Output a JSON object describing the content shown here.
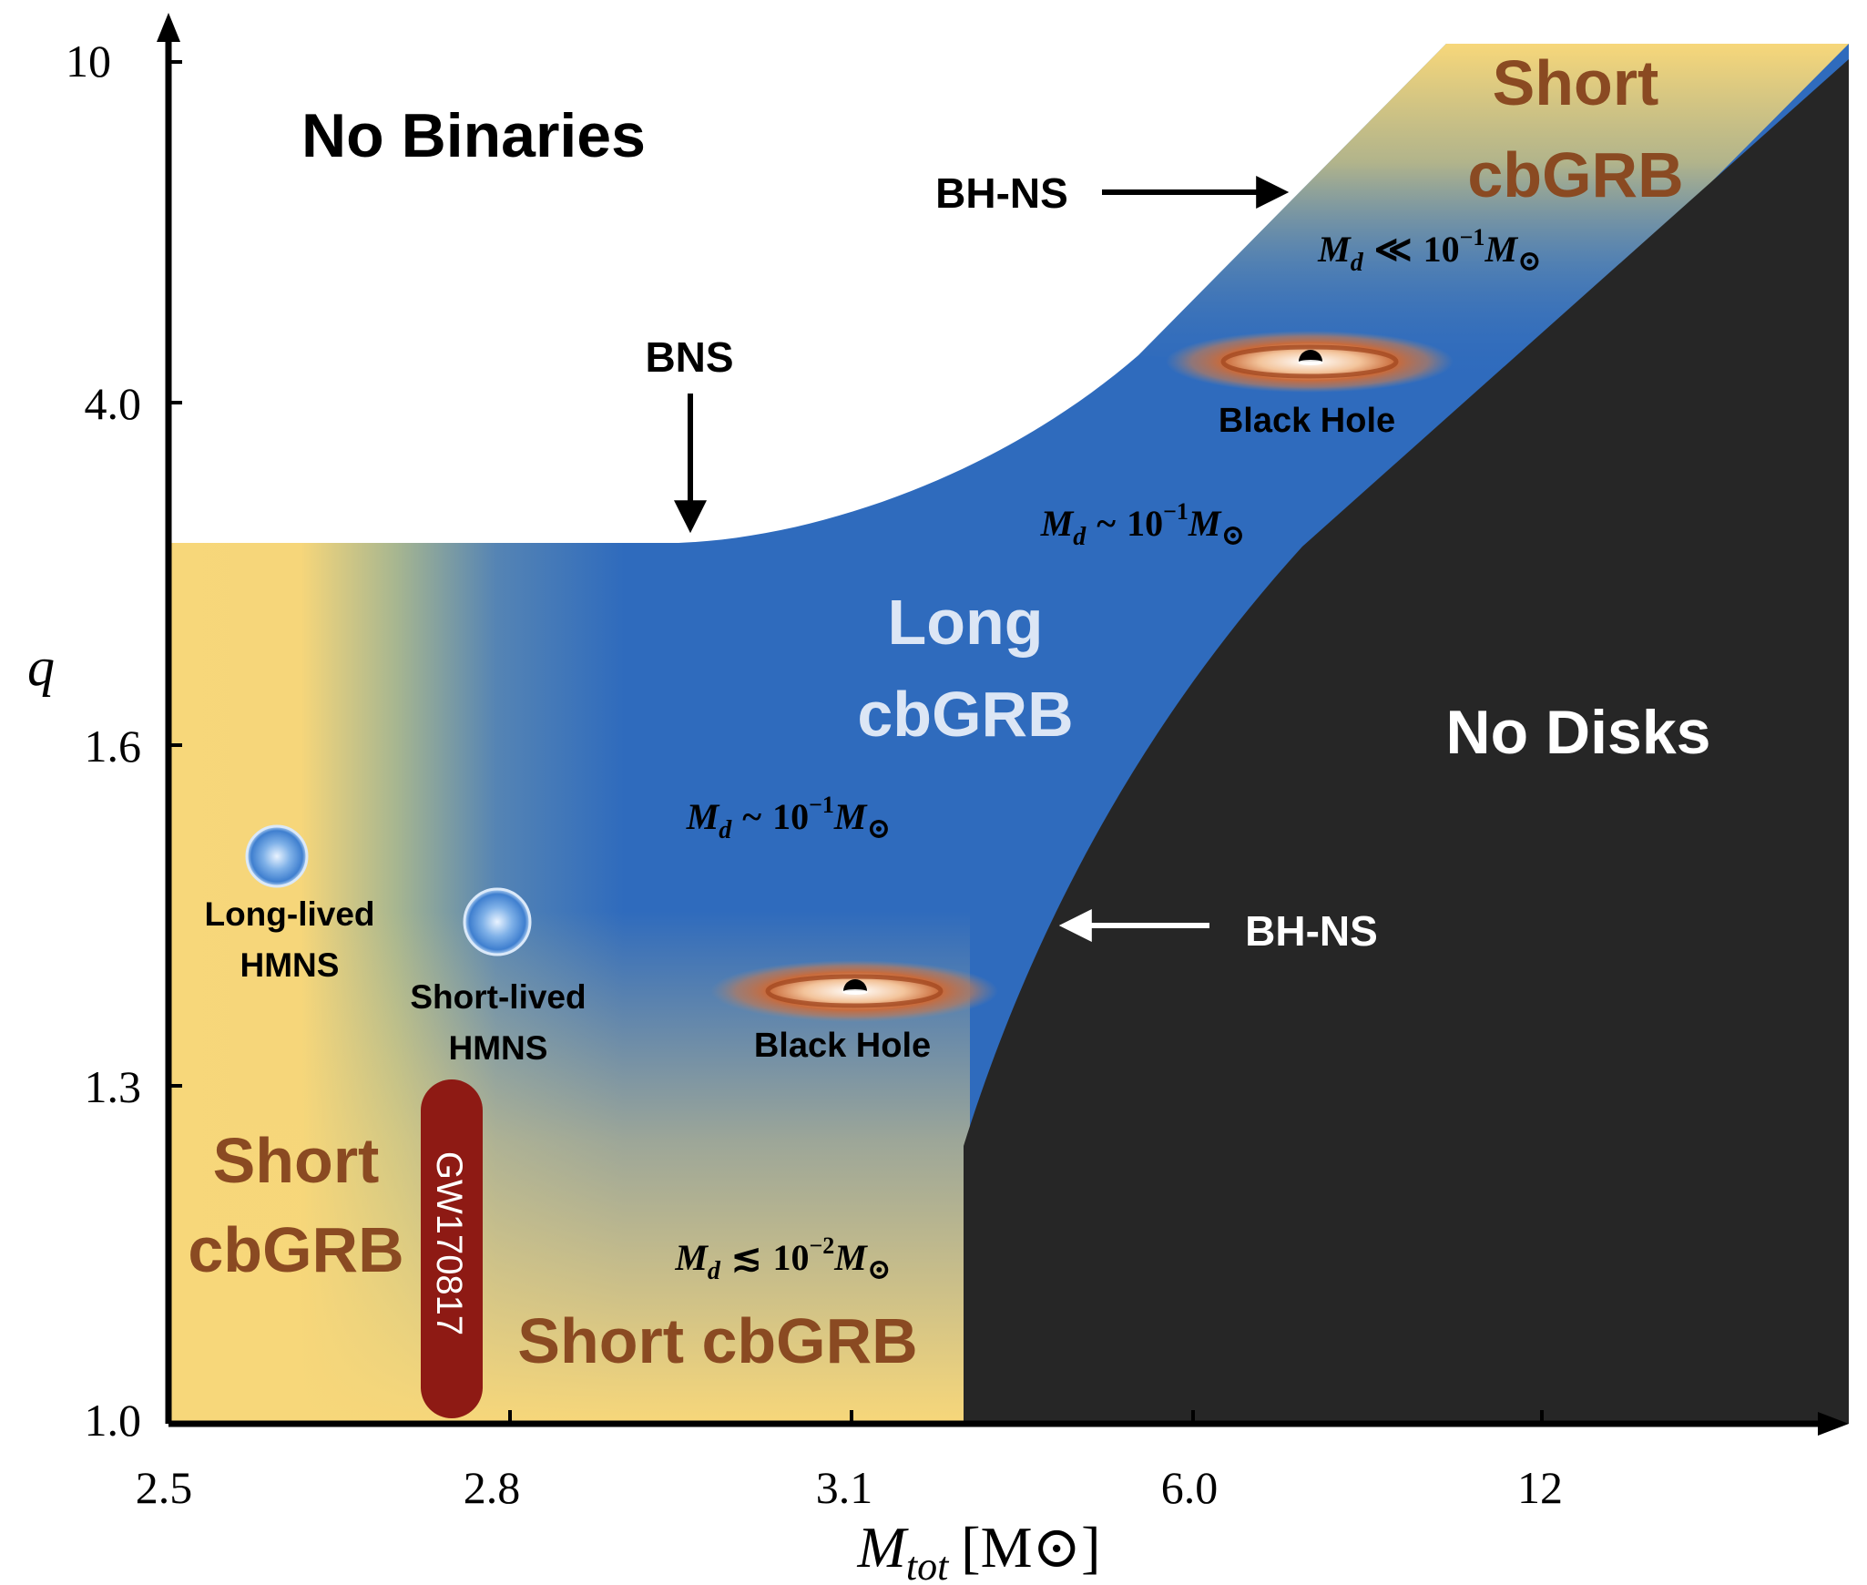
{
  "axes": {
    "y_label": "q",
    "y_ticks": [
      "10",
      "4.0",
      "1.6",
      "1.3",
      "1.0"
    ],
    "x_label": "M",
    "x_label_sub": "tot",
    "x_label_unit": "[M",
    "x_label_unit_sym": "⊙",
    "x_label_unit_close": "]",
    "x_ticks": [
      "2.5",
      "2.8",
      "3.1",
      "6.0",
      "12"
    ]
  },
  "regions": {
    "no_binaries": "No Binaries",
    "no_disks": "No Disks",
    "long_cbgrb": [
      "Long",
      "cbGRB"
    ],
    "short_cbgrb_top": [
      "Short",
      "cbGRB"
    ],
    "short_cbgrb_left": [
      "Short",
      "cbGRB"
    ],
    "short_cbgrb_bottom": "Short cbGRB"
  },
  "annotations": {
    "bns": "BNS",
    "bhns_top": "BH-NS",
    "bhns_mid": "BH-NS",
    "black_hole_top": "Black Hole",
    "black_hole_mid": "Black Hole",
    "long_lived": [
      "Long-lived",
      "HMNS"
    ],
    "short_lived": [
      "Short-lived",
      "HMNS"
    ],
    "gw_event": "GW170817"
  },
  "disk_masses": {
    "top": {
      "M": "M",
      "sub": "d",
      "rel": "≪",
      "val": "10",
      "exp": "−1",
      "M2": "M",
      "sun": "⊙"
    },
    "upper": {
      "M": "M",
      "sub": "d",
      "rel": "~",
      "val": "10",
      "exp": "−1",
      "M2": "M",
      "sun": "⊙"
    },
    "middle": {
      "M": "M",
      "sub": "d",
      "rel": "~",
      "val": "10",
      "exp": "−1",
      "M2": "M",
      "sun": "⊙"
    },
    "bottom": {
      "M": "M",
      "sub": "d",
      "rel": "≲",
      "val": "10",
      "exp": "−2",
      "M2": "M",
      "sun": "⊙"
    }
  },
  "colors": {
    "short_yellow": "#f7d77a",
    "long_blue": "#2f6bbd",
    "no_disk_black": "#262626",
    "short_text_brown": "#8a4a22",
    "long_text_light": "#dce6f5",
    "gw_red": "#8e1a14"
  }
}
